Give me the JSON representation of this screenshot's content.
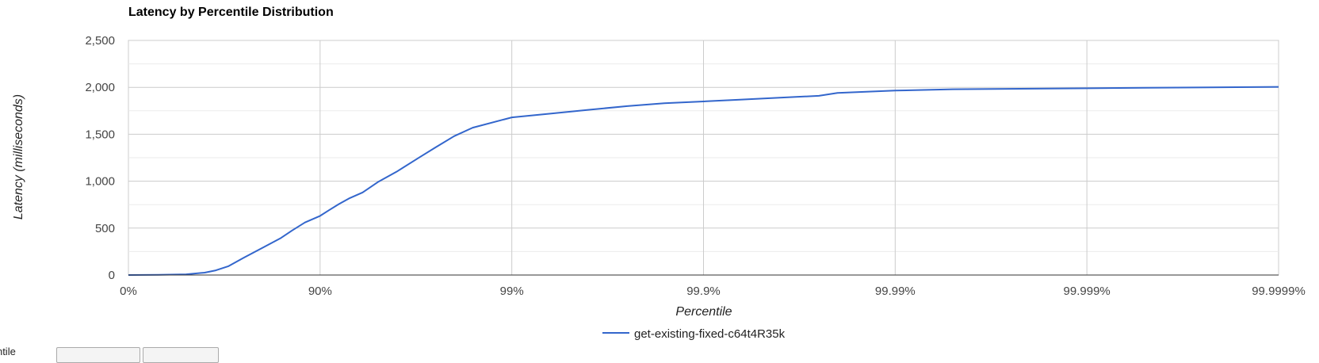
{
  "chart_data": {
    "type": "line",
    "title": "Latency by Percentile Distribution",
    "xlabel": "Percentile",
    "ylabel": "Latency (milliseconds)",
    "x_scale": "log-inverse-percentile",
    "x_ticks": [
      "0%",
      "90%",
      "99%",
      "99.9%",
      "99.99%",
      "99.999%",
      "99.9999%"
    ],
    "y_ticks": [
      "0",
      "500",
      "1,000",
      "1,500",
      "2,000",
      "2,500"
    ],
    "ylim": [
      0,
      2500
    ],
    "grid": true,
    "legend_position": "bottom",
    "series": [
      {
        "name": "get-existing-fixed-c64t4R35k",
        "color": "#3366cc",
        "x": [
          0,
          30,
          50,
          60,
          65,
          70,
          75,
          80,
          84,
          86,
          88,
          90,
          91,
          92,
          93,
          94,
          95,
          96,
          97,
          97.5,
          98,
          98.4,
          99,
          99.37,
          99.6,
          99.75,
          99.84,
          99.9,
          99.937,
          99.96,
          99.975,
          99.98,
          99.99,
          99.995,
          99.999,
          99.9995,
          99.9999
        ],
        "y": [
          0,
          2,
          8,
          25,
          50,
          95,
          185,
          290,
          395,
          475,
          560,
          630,
          690,
          755,
          820,
          880,
          990,
          1100,
          1260,
          1360,
          1480,
          1570,
          1680,
          1720,
          1760,
          1800,
          1830,
          1850,
          1870,
          1890,
          1910,
          1940,
          1965,
          1980,
          1990,
          1995,
          2005
        ]
      }
    ]
  },
  "controls": {
    "label": "Percentile"
  }
}
